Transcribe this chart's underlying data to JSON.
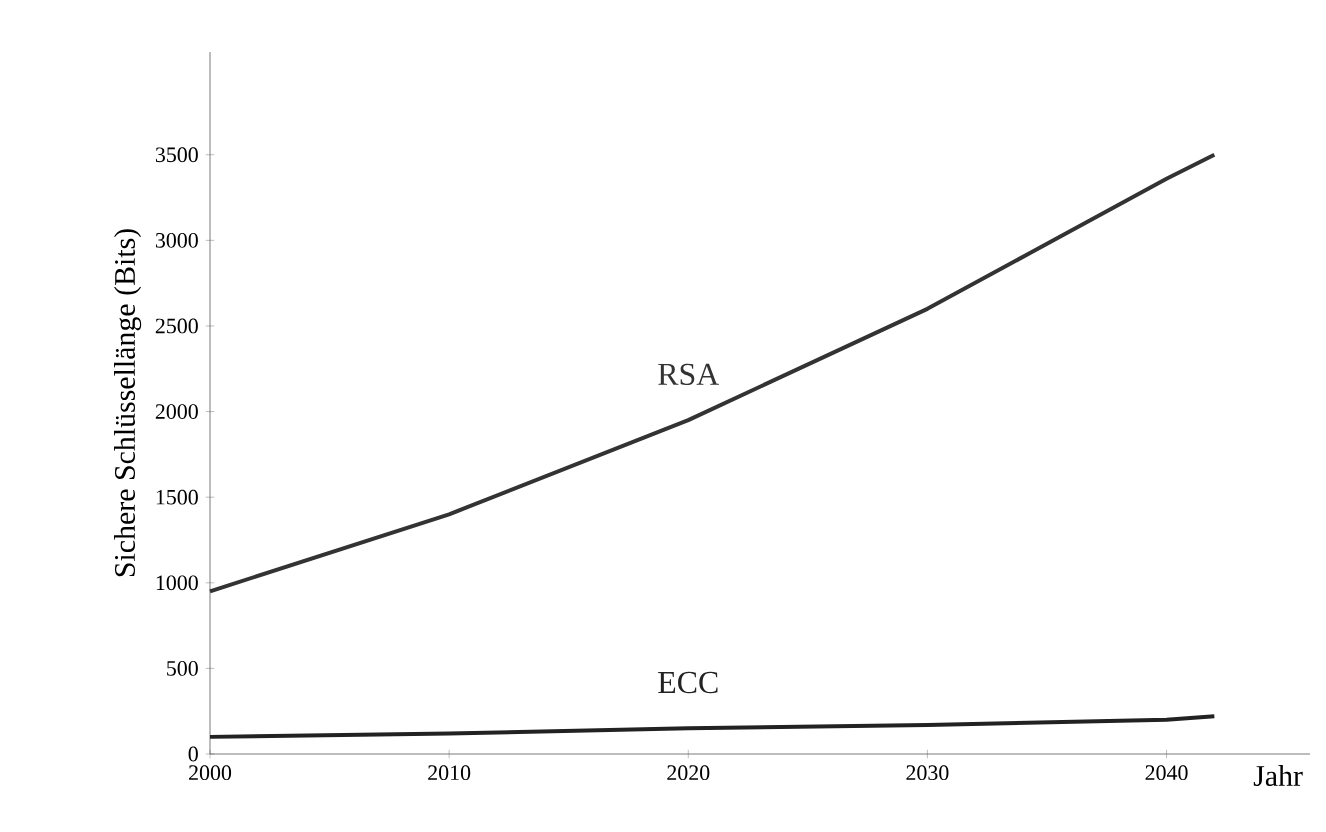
{
  "chart_data": {
    "type": "line",
    "xlabel": "Jahr",
    "ylabel": "Sichere Schlüssellänge (Bits)",
    "x": [
      2000,
      2010,
      2020,
      2030,
      2040,
      2042
    ],
    "series": [
      {
        "name": "RSA",
        "color": "#333333",
        "values": [
          950,
          1400,
          1950,
          2600,
          3360,
          3500
        ]
      },
      {
        "name": "ECC",
        "color": "#222222",
        "values": [
          100,
          120,
          150,
          170,
          200,
          220
        ]
      }
    ],
    "xlim": [
      2000,
      2046
    ],
    "ylim": [
      0,
      4100
    ],
    "xticks": [
      2000,
      2010,
      2020,
      2030,
      2040
    ],
    "yticks": [
      0,
      500,
      1000,
      1500,
      2000,
      2500,
      3000,
      3500
    ],
    "line_style": "solid"
  }
}
